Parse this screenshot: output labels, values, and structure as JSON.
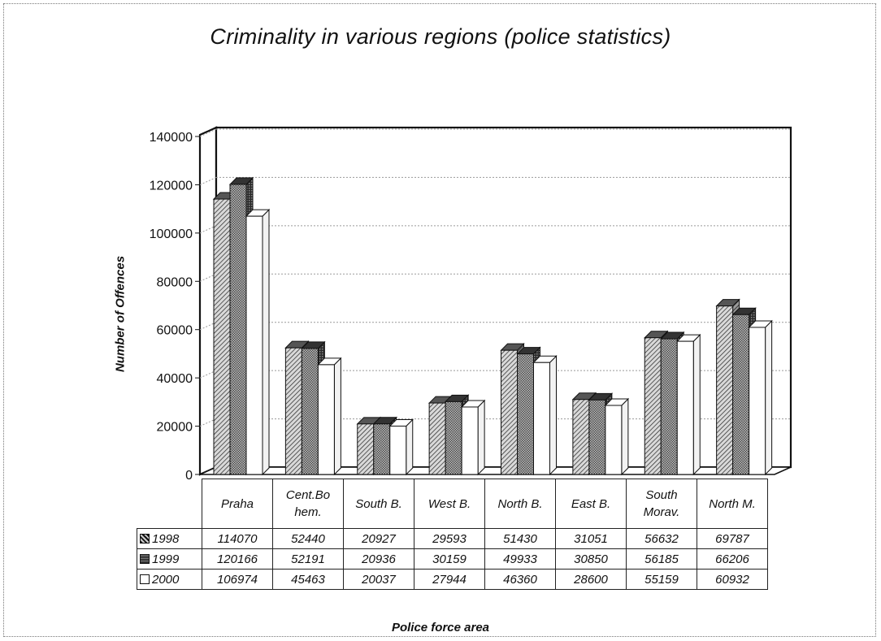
{
  "chart_data": {
    "type": "bar",
    "title": "Criminality in various regions (police statistics)",
    "xlabel": "Police force area",
    "ylabel": "Number of Offences",
    "ylim": [
      0,
      140000
    ],
    "yticks": [
      "0",
      "20000",
      "40000",
      "60000",
      "80000",
      "100000",
      "120000",
      "140000"
    ],
    "grid": true,
    "legend": "data table rows",
    "categories": [
      "Praha",
      "Cent.Bohem.",
      "South B.",
      "West B.",
      "North B.",
      "East B.",
      "South Morav.",
      "North M."
    ],
    "category_lines": [
      [
        "Praha"
      ],
      [
        "Cent.Bo",
        "hem."
      ],
      [
        "South B."
      ],
      [
        "West B."
      ],
      [
        "North B."
      ],
      [
        "East B."
      ],
      [
        "South",
        "Morav."
      ],
      [
        "North M."
      ]
    ],
    "series": [
      {
        "name": "1998",
        "values": [
          114070,
          52440,
          20927,
          29593,
          51430,
          31051,
          56632,
          69787
        ],
        "color": "#8c8c8c"
      },
      {
        "name": "1999",
        "values": [
          120166,
          52191,
          20936,
          30159,
          49933,
          30850,
          56185,
          66206
        ],
        "color": "#6e6e6e"
      },
      {
        "name": "2000",
        "values": [
          106974,
          45463,
          20037,
          27944,
          46360,
          28600,
          55159,
          60932
        ],
        "color": "#ffffff"
      }
    ]
  }
}
